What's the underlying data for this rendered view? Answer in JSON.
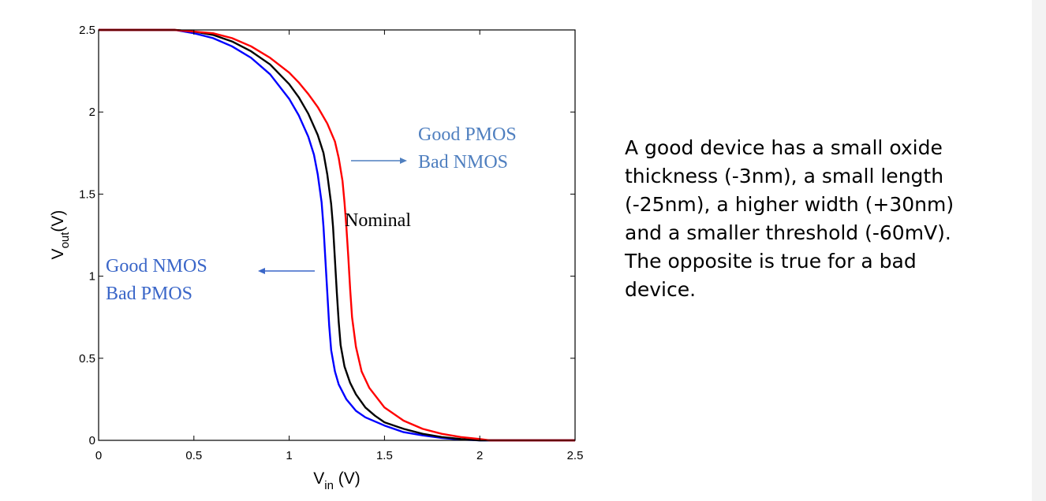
{
  "chart_data": {
    "type": "line",
    "xlabel": {
      "main": "V",
      "sub": "in",
      "rest": " (V)"
    },
    "ylabel": {
      "main": "V",
      "sub": "out",
      "rest": "(V)"
    },
    "xlim": [
      0,
      2.5
    ],
    "ylim": [
      0,
      2.5
    ],
    "xticks": [
      0,
      0.5,
      1,
      1.5,
      2,
      2.5
    ],
    "xtick_labels": [
      "0",
      "0.5",
      "1",
      "1.5",
      "2",
      "2.5"
    ],
    "yticks": [
      0,
      0.5,
      1,
      1.5,
      2,
      2.5
    ],
    "ytick_labels": [
      "0",
      "0.5",
      "1",
      "1.5",
      "2",
      "2.5"
    ],
    "grid": false,
    "series": [
      {
        "color": "#0000ff",
        "x": [
          0,
          0.2,
          0.4,
          0.5,
          0.6,
          0.7,
          0.8,
          0.9,
          1.0,
          1.05,
          1.1,
          1.13,
          1.15,
          1.17,
          1.18,
          1.19,
          1.2,
          1.21,
          1.22,
          1.24,
          1.26,
          1.3,
          1.35,
          1.4,
          1.5,
          1.6,
          1.7,
          1.8,
          1.9,
          2.0,
          2.5
        ],
        "y": [
          2.5,
          2.5,
          2.5,
          2.48,
          2.45,
          2.4,
          2.33,
          2.23,
          2.08,
          1.98,
          1.85,
          1.74,
          1.62,
          1.45,
          1.3,
          1.1,
          0.9,
          0.7,
          0.55,
          0.42,
          0.34,
          0.25,
          0.18,
          0.14,
          0.09,
          0.05,
          0.03,
          0.015,
          0.005,
          0.0,
          0.0
        ]
      },
      {
        "color": "#000000",
        "x": [
          0,
          0.2,
          0.4,
          0.5,
          0.6,
          0.7,
          0.8,
          0.9,
          1.0,
          1.05,
          1.1,
          1.15,
          1.18,
          1.2,
          1.22,
          1.23,
          1.24,
          1.25,
          1.26,
          1.27,
          1.29,
          1.32,
          1.35,
          1.4,
          1.45,
          1.5,
          1.6,
          1.7,
          1.8,
          1.9,
          2.0,
          2.5
        ],
        "y": [
          2.5,
          2.5,
          2.5,
          2.49,
          2.47,
          2.43,
          2.37,
          2.29,
          2.17,
          2.09,
          1.99,
          1.86,
          1.75,
          1.62,
          1.44,
          1.3,
          1.1,
          0.9,
          0.72,
          0.58,
          0.45,
          0.35,
          0.28,
          0.2,
          0.15,
          0.11,
          0.07,
          0.04,
          0.02,
          0.008,
          0.0,
          0.0
        ]
      },
      {
        "color": "#ff0000",
        "x": [
          0,
          0.2,
          0.4,
          0.5,
          0.6,
          0.7,
          0.8,
          0.9,
          1.0,
          1.05,
          1.1,
          1.15,
          1.2,
          1.24,
          1.26,
          1.28,
          1.29,
          1.3,
          1.31,
          1.32,
          1.33,
          1.35,
          1.38,
          1.42,
          1.5,
          1.6,
          1.7,
          1.8,
          1.9,
          2.0,
          2.05,
          2.5
        ],
        "y": [
          2.5,
          2.5,
          2.5,
          2.49,
          2.48,
          2.45,
          2.4,
          2.33,
          2.24,
          2.18,
          2.11,
          2.03,
          1.93,
          1.82,
          1.72,
          1.58,
          1.45,
          1.3,
          1.12,
          0.92,
          0.75,
          0.57,
          0.42,
          0.32,
          0.2,
          0.12,
          0.07,
          0.04,
          0.02,
          0.008,
          0.0,
          0.0
        ]
      }
    ],
    "annotations": [
      {
        "lines": [
          "Good PMOS",
          "Bad NMOS"
        ],
        "color": "#4f7fbf",
        "arrow": "right"
      },
      {
        "lines": [
          "Nominal"
        ],
        "color": "#000000",
        "arrow": "none"
      },
      {
        "lines": [
          "Good NMOS",
          "Bad PMOS"
        ],
        "color": "#3a66c8",
        "arrow": "left"
      }
    ]
  },
  "caption": {
    "lines": [
      "A good device has a small oxide",
      "thickness (-3nm), a small length",
      "(-25nm), a higher width (+30nm)",
      "and a smaller threshold (-60mV).",
      "The opposite is true for a bad",
      "device."
    ]
  }
}
